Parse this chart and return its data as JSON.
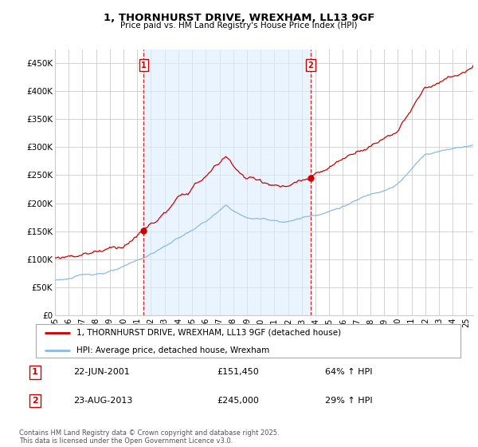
{
  "title": "1, THORNHURST DRIVE, WREXHAM, LL13 9GF",
  "subtitle": "Price paid vs. HM Land Registry's House Price Index (HPI)",
  "ylim": [
    0,
    475000
  ],
  "yticks": [
    0,
    50000,
    100000,
    150000,
    200000,
    250000,
    300000,
    350000,
    400000,
    450000
  ],
  "ytick_labels": [
    "£0",
    "£50K",
    "£100K",
    "£150K",
    "£200K",
    "£250K",
    "£300K",
    "£350K",
    "£400K",
    "£450K"
  ],
  "xmin_year": 1995.0,
  "xmax_year": 2025.5,
  "marker1": {
    "year": 2001.47,
    "price": 151450,
    "label": "1",
    "date": "22-JUN-2001",
    "pct": "64% ↑ HPI"
  },
  "marker2": {
    "year": 2013.64,
    "price": 245000,
    "label": "2",
    "date": "23-AUG-2013",
    "pct": "29% ↑ HPI"
  },
  "line1_color": "#cc0000",
  "line2_color": "#88bbdd",
  "fill_color": "#ddeeff",
  "vline_color": "#cc0000",
  "grid_color": "#cccccc",
  "bg_color": "#ffffff",
  "legend1_label": "1, THORNHURST DRIVE, WREXHAM, LL13 9GF (detached house)",
  "legend2_label": "HPI: Average price, detached house, Wrexham",
  "table_rows": [
    {
      "num": "1",
      "date": "22-JUN-2001",
      "price": "£151,450",
      "pct": "64% ↑ HPI"
    },
    {
      "num": "2",
      "date": "23-AUG-2013",
      "price": "£245,000",
      "pct": "29% ↑ HPI"
    }
  ],
  "footnote": "Contains HM Land Registry data © Crown copyright and database right 2025.\nThis data is licensed under the Open Government Licence v3.0.",
  "xtick_years": [
    1995,
    1996,
    1997,
    1998,
    1999,
    2000,
    2001,
    2002,
    2003,
    2004,
    2005,
    2006,
    2007,
    2008,
    2009,
    2010,
    2011,
    2012,
    2013,
    2014,
    2015,
    2016,
    2017,
    2018,
    2019,
    2020,
    2021,
    2022,
    2023,
    2024,
    2025
  ]
}
